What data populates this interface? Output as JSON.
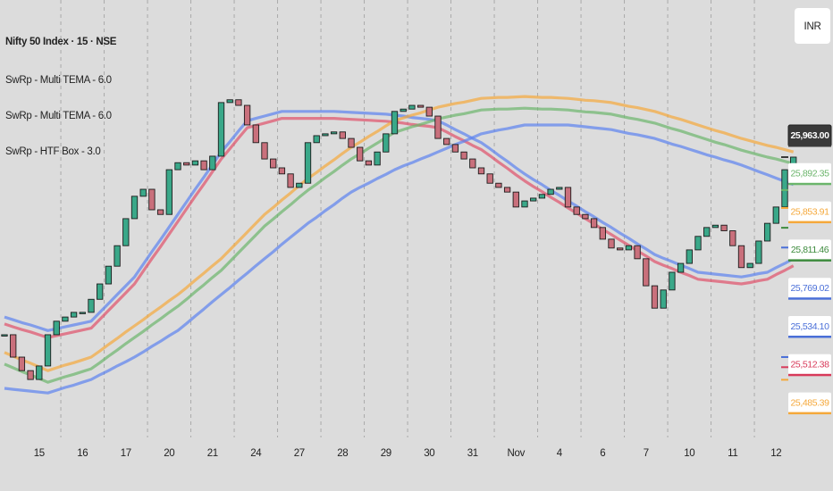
{
  "chart_data": {
    "type": "candlestick",
    "title": "Nifty 50 Index · 15 · NSE",
    "indicators": [
      "SwRp - Multi TEMA - 6.0",
      "SwRp - Multi TEMA - 6.0",
      "SwRp - HTF Box - 3.0"
    ],
    "currency": "INR",
    "categories": [
      null,
      null,
      null,
      null,
      "15",
      null,
      null,
      null,
      null,
      "16",
      null,
      null,
      null,
      null,
      "17",
      null,
      null,
      null,
      null,
      "20",
      null,
      null,
      null,
      null,
      "21",
      null,
      null,
      null,
      null,
      "24",
      null,
      null,
      null,
      null,
      "27",
      null,
      null,
      null,
      null,
      "28",
      null,
      null,
      null,
      null,
      "29",
      null,
      null,
      null,
      null,
      "30",
      null,
      null,
      null,
      null,
      "31",
      null,
      null,
      null,
      null,
      "Nov",
      null,
      null,
      null,
      null,
      "4",
      null,
      null,
      null,
      null,
      "6",
      null,
      null,
      null,
      null,
      "7",
      null,
      null,
      null,
      null,
      "10",
      null,
      null,
      null,
      null,
      "11",
      null,
      null,
      null,
      null,
      "12",
      null,
      null
    ],
    "values": [
      25582,
      25534,
      25505,
      25486,
      25515,
      25582,
      25611,
      25620,
      25630,
      25630,
      25658,
      25691,
      25729,
      25773,
      25831,
      25879,
      25894,
      25850,
      25840,
      25936,
      25951,
      25946,
      25955,
      25936,
      25965,
      26080,
      26086,
      26074,
      26032,
      25994,
      25959,
      25940,
      25927,
      25898,
      25907,
      25994,
      26009,
      26013,
      26017,
      26003,
      25984,
      25955,
      25946,
      25974,
      26013,
      26061,
      26066,
      26074,
      26070,
      26051,
      26003,
      25990,
      25974,
      25959,
      25940,
      25927,
      25907,
      25898,
      25888,
      25856,
      25869,
      25875,
      25883,
      25894,
      25898,
      25856,
      25840,
      25831,
      25812,
      25787,
      25768,
      25764,
      25773,
      25745,
      25687,
      25639,
      25678,
      25716,
      25735,
      25764,
      25793,
      25812,
      25817,
      25805,
      25773,
      25726,
      25735,
      25783,
      25821,
      25856,
      25936,
      25963
    ],
    "up_color": "#3aa889",
    "down_color": "#c9707c",
    "lines": [
      {
        "color": "#5b82f0",
        "values": [
          25620,
          25614,
          25608,
          25603,
          25597,
          25591,
          25595,
          25599,
          25603,
          25607,
          25611,
          25630,
          25649,
          25668,
          25687,
          25706,
          25733,
          25760,
          25786,
          25813,
          25840,
          25867,
          25894,
          25920,
          25947,
          25974,
          25996,
          26019,
          26041,
          26046,
          26051,
          26056,
          26061,
          26061,
          26061,
          26061,
          26061,
          26061,
          26061,
          26060,
          26059,
          26058,
          26057,
          26056,
          26055,
          26053,
          26051,
          26048,
          26046,
          26044,
          26041,
          26032,
          26022,
          26013,
          26003,
          25994,
          25981,
          25967,
          25954,
          25940,
          25927,
          25915,
          25904,
          25892,
          25881,
          25869,
          25858,
          25846,
          25835,
          25823,
          25812,
          25800,
          25789,
          25777,
          25766,
          25754,
          25746,
          25739,
          25731,
          25724,
          25716,
          25714,
          25712,
          25710,
          25708,
          25706,
          25709,
          25713,
          25716,
          25726,
          25735,
          25745
        ]
      },
      {
        "color": "#e0506a",
        "values": [
          25605,
          25599,
          25593,
          25588,
          25582,
          25576,
          25580,
          25584,
          25588,
          25592,
          25596,
          25615,
          25634,
          25653,
          25672,
          25691,
          25718,
          25745,
          25771,
          25798,
          25825,
          25852,
          25879,
          25905,
          25932,
          25959,
          25981,
          26004,
          26026,
          26031,
          26036,
          26041,
          26046,
          26046,
          26046,
          26046,
          26046,
          26046,
          26046,
          26045,
          26044,
          26043,
          26042,
          26041,
          26040,
          26038,
          26036,
          26033,
          26031,
          26029,
          26026,
          26017,
          26007,
          25998,
          25988,
          25979,
          25966,
          25952,
          25939,
          25925,
          25912,
          25900,
          25889,
          25877,
          25866,
          25854,
          25843,
          25831,
          25820,
          25808,
          25797,
          25785,
          25774,
          25762,
          25751,
          25739,
          25731,
          25724,
          25716,
          25709,
          25701,
          25699,
          25697,
          25695,
          25693,
          25691,
          25694,
          25698,
          25701,
          25711,
          25720,
          25730
        ]
      },
      {
        "color": "#f5a83a",
        "values": [
          25544,
          25536,
          25528,
          25521,
          25513,
          25505,
          25511,
          25517,
          25522,
          25528,
          25534,
          25547,
          25561,
          25574,
          25588,
          25601,
          25614,
          25628,
          25641,
          25655,
          25668,
          25683,
          25699,
          25714,
          25730,
          25745,
          25764,
          25783,
          25802,
          25821,
          25840,
          25855,
          25871,
          25886,
          25902,
          25917,
          25930,
          25944,
          25957,
          25971,
          25984,
          25995,
          26007,
          26018,
          26030,
          26041,
          26047,
          26053,
          26058,
          26064,
          26070,
          26074,
          26078,
          26081,
          26085,
          26089,
          26090,
          26091,
          26091,
          26092,
          26093,
          26092,
          26091,
          26091,
          26090,
          26089,
          26087,
          26085,
          26084,
          26082,
          26080,
          26076,
          26072,
          26069,
          26065,
          26061,
          26055,
          26049,
          26044,
          26038,
          26032,
          26026,
          26020,
          26015,
          26009,
          26003,
          25998,
          25993,
          25988,
          25984,
          25979,
          25974
        ]
      },
      {
        "color": "#6bb56b",
        "values": [
          25519,
          25511,
          25503,
          25496,
          25488,
          25480,
          25486,
          25492,
          25497,
          25503,
          25509,
          25522,
          25536,
          25549,
          25563,
          25576,
          25589,
          25603,
          25616,
          25630,
          25643,
          25658,
          25674,
          25689,
          25705,
          25720,
          25739,
          25758,
          25777,
          25796,
          25815,
          25830,
          25846,
          25861,
          25877,
          25892,
          25905,
          25919,
          25932,
          25946,
          25959,
          25970,
          25982,
          25993,
          26005,
          26016,
          26022,
          26028,
          26033,
          26039,
          26045,
          26049,
          26053,
          26056,
          26060,
          26064,
          26065,
          26066,
          26066,
          26067,
          26068,
          26067,
          26066,
          26066,
          26065,
          26064,
          26062,
          26060,
          26059,
          26057,
          26055,
          26051,
          26047,
          26044,
          26040,
          26036,
          26030,
          26024,
          26019,
          26013,
          26007,
          26001,
          25995,
          25990,
          25984,
          25978,
          25973,
          25968,
          25963,
          25959,
          25954,
          25949
        ]
      },
      {
        "color": "#5b82f0",
        "values": [
          25467,
          25465,
          25463,
          25461,
          25459,
          25457,
          25463,
          25469,
          25474,
          25480,
          25486,
          25496,
          25505,
          25515,
          25524,
          25534,
          25545,
          25557,
          25568,
          25580,
          25591,
          25606,
          25622,
          25637,
          25653,
          25668,
          25683,
          25699,
          25714,
          25730,
          25745,
          25760,
          25776,
          25791,
          25806,
          25821,
          25834,
          25848,
          25861,
          25875,
          25888,
          25898,
          25907,
          25917,
          25926,
          25936,
          25944,
          25951,
          25959,
          25966,
          25974,
          25982,
          25990,
          25997,
          26005,
          26013,
          26017,
          26021,
          26024,
          26028,
          26032,
          26032,
          26032,
          26032,
          26032,
          26032,
          26030,
          26028,
          26026,
          26024,
          26022,
          26018,
          26014,
          26011,
          26007,
          26003,
          25997,
          25991,
          25986,
          25980,
          25974,
          25968,
          25963,
          25957,
          25952,
          25946,
          25939,
          25932,
          25925,
          25918,
          25911,
          25904
        ]
      }
    ],
    "price_labels": [
      {
        "value": 25963,
        "label": "25,963.00",
        "color": "#3a3a3a"
      },
      {
        "value": 25892.35,
        "label": "25,892.35",
        "color": "#6bb56b"
      },
      {
        "value": 25853.91,
        "label": "25,853.91",
        "color": "#f5a83a"
      },
      {
        "value": 25811.46,
        "label": "25,811.46",
        "color": "#3d8b3d"
      },
      {
        "value": 25769.02,
        "label": "25,769.02",
        "color": "#4a6fd8"
      },
      {
        "value": 25534.1,
        "label": "25,534.10",
        "color": "#4a6fd8"
      },
      {
        "value": 25512.38,
        "label": "25,512.38",
        "color": "#d83a5a"
      },
      {
        "value": 25485.39,
        "label": "25,485.39",
        "color": "#f5a83a"
      }
    ],
    "ylim": [
      25400,
      26300
    ]
  }
}
